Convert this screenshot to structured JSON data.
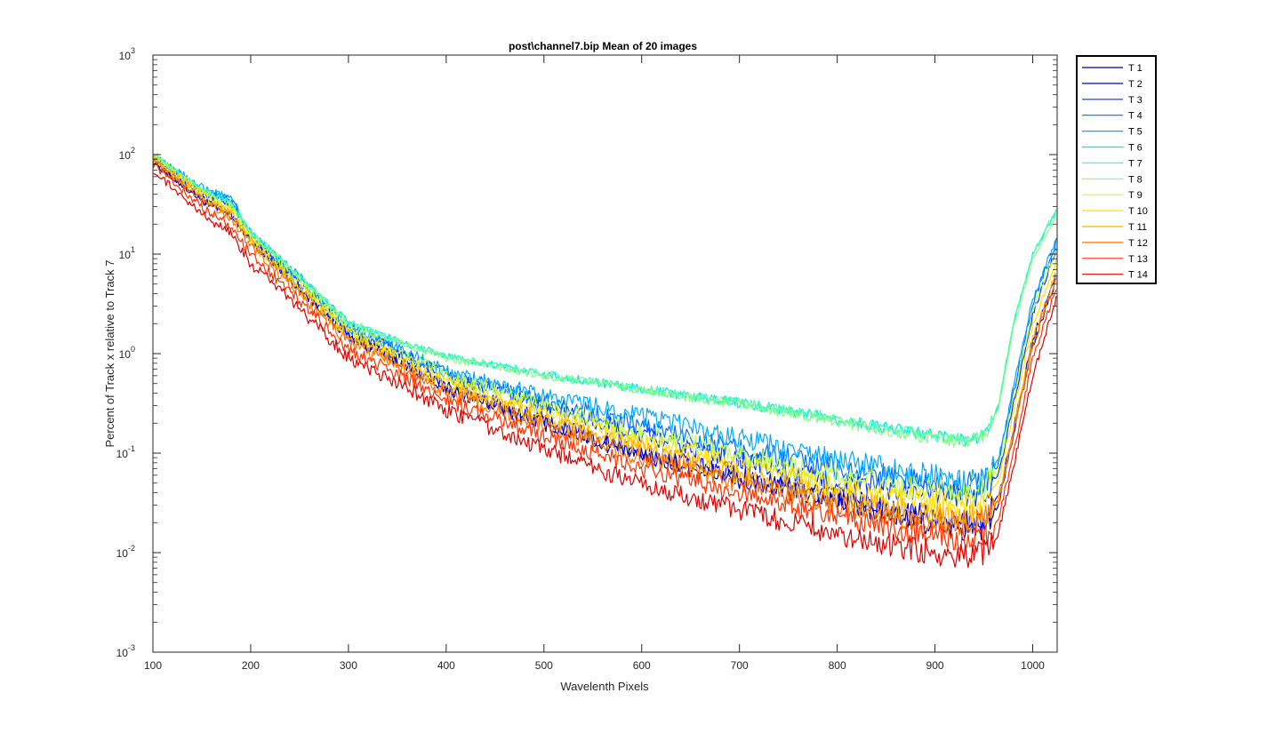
{
  "chart_data": {
    "type": "line",
    "title": "post\\channel7.bip  Mean of 20 images",
    "xlabel": "Wavelenth Pixels",
    "ylabel": "Percent of Track x relative to Track 7",
    "xlim": [
      100,
      1025
    ],
    "ylim": [
      0.001,
      1000
    ],
    "yscale": "log",
    "grid": false,
    "legend_position": "outside-right",
    "xticks": [
      {
        "value": 100,
        "label": "100"
      },
      {
        "value": 200,
        "label": "200"
      },
      {
        "value": 300,
        "label": "300"
      },
      {
        "value": 400,
        "label": "400"
      },
      {
        "value": 500,
        "label": "500"
      },
      {
        "value": 600,
        "label": "600"
      },
      {
        "value": 700,
        "label": "700"
      },
      {
        "value": 800,
        "label": "800"
      },
      {
        "value": 900,
        "label": "900"
      },
      {
        "value": 1000,
        "label": "1000"
      }
    ],
    "yticks": [
      {
        "value": 0.001,
        "base": "10",
        "exp": "-3"
      },
      {
        "value": 0.01,
        "base": "10",
        "exp": "-2"
      },
      {
        "value": 0.1,
        "base": "10",
        "exp": "-1"
      },
      {
        "value": 1,
        "base": "10",
        "exp": "0"
      },
      {
        "value": 10,
        "base": "10",
        "exp": "1"
      },
      {
        "value": 100,
        "base": "10",
        "exp": "2"
      },
      {
        "value": 1000,
        "base": "10",
        "exp": "3"
      }
    ],
    "x": [
      100,
      150,
      180,
      200,
      250,
      300,
      350,
      400,
      500,
      600,
      700,
      800,
      850,
      900,
      930,
      950,
      965,
      980,
      1000,
      1025
    ],
    "series": [
      {
        "name": "T 1",
        "color": "#0000A0",
        "values": [
          85,
          35,
          24,
          14,
          4.5,
          1.5,
          0.85,
          0.45,
          0.2,
          0.095,
          0.055,
          0.033,
          0.025,
          0.019,
          0.017,
          0.018,
          0.03,
          0.15,
          1.2,
          6
        ]
      },
      {
        "name": "T 2",
        "color": "#0000E0",
        "values": [
          88,
          36,
          25,
          14,
          4.6,
          1.55,
          0.88,
          0.47,
          0.21,
          0.1,
          0.058,
          0.036,
          0.028,
          0.022,
          0.02,
          0.022,
          0.035,
          0.17,
          1.4,
          7
        ]
      },
      {
        "name": "T 3",
        "color": "#0030FF",
        "values": [
          95,
          42,
          32,
          15,
          5.2,
          1.7,
          1.05,
          0.58,
          0.3,
          0.15,
          0.085,
          0.05,
          0.045,
          0.04,
          0.038,
          0.04,
          0.06,
          0.3,
          2.5,
          12
        ]
      },
      {
        "name": "T 4",
        "color": "#0070FF",
        "values": [
          98,
          44,
          34,
          16,
          5.5,
          1.8,
          1.1,
          0.62,
          0.34,
          0.19,
          0.11,
          0.07,
          0.06,
          0.052,
          0.048,
          0.05,
          0.08,
          0.4,
          3.2,
          14
        ]
      },
      {
        "name": "T 5",
        "color": "#00AAFF",
        "values": [
          100,
          46,
          35,
          17,
          5.8,
          1.9,
          1.15,
          0.65,
          0.38,
          0.24,
          0.14,
          0.085,
          0.07,
          0.058,
          0.05,
          0.052,
          0.085,
          0.45,
          3.5,
          15
        ]
      },
      {
        "name": "T 6",
        "color": "#00E5E5",
        "values": [
          100,
          45,
          33,
          17,
          6,
          2.1,
          1.35,
          0.95,
          0.62,
          0.44,
          0.32,
          0.22,
          0.18,
          0.15,
          0.135,
          0.15,
          0.3,
          2,
          10,
          28
        ]
      },
      {
        "name": "T 7",
        "color": "#40FFC0",
        "values": [
          100,
          45,
          33,
          17,
          6,
          2.1,
          1.35,
          0.95,
          0.62,
          0.44,
          0.32,
          0.22,
          0.18,
          0.15,
          0.135,
          0.15,
          0.3,
          2,
          10,
          30
        ]
      },
      {
        "name": "T 8",
        "color": "#80FF80",
        "values": [
          100,
          44,
          31,
          16,
          5.8,
          2,
          1.3,
          0.9,
          0.6,
          0.43,
          0.31,
          0.21,
          0.17,
          0.14,
          0.13,
          0.14,
          0.28,
          1.8,
          9,
          25
        ]
      },
      {
        "name": "T 9",
        "color": "#C0FF40",
        "values": [
          98,
          42,
          29,
          15,
          5.2,
          1.8,
          1.05,
          0.6,
          0.3,
          0.16,
          0.095,
          0.058,
          0.048,
          0.042,
          0.04,
          0.045,
          0.07,
          0.35,
          2.8,
          12
        ]
      },
      {
        "name": "T 10",
        "color": "#FFE000",
        "values": [
          95,
          40,
          27,
          14,
          4.8,
          1.6,
          0.95,
          0.52,
          0.26,
          0.13,
          0.075,
          0.045,
          0.038,
          0.033,
          0.03,
          0.032,
          0.05,
          0.25,
          2,
          9
        ]
      },
      {
        "name": "T 11",
        "color": "#FFB000",
        "values": [
          92,
          38,
          25,
          13,
          4.4,
          1.45,
          0.85,
          0.46,
          0.22,
          0.11,
          0.062,
          0.036,
          0.029,
          0.024,
          0.022,
          0.023,
          0.035,
          0.17,
          1.4,
          7
        ]
      },
      {
        "name": "T 12",
        "color": "#FF7000",
        "values": [
          88,
          35,
          23,
          12,
          4,
          1.3,
          0.75,
          0.4,
          0.19,
          0.09,
          0.05,
          0.029,
          0.024,
          0.021,
          0.02,
          0.021,
          0.032,
          0.15,
          1.2,
          6
        ]
      },
      {
        "name": "T 13",
        "color": "#FF3000",
        "values": [
          80,
          30,
          19,
          10,
          3.4,
          1.1,
          0.63,
          0.34,
          0.15,
          0.07,
          0.04,
          0.023,
          0.018,
          0.015,
          0.013,
          0.014,
          0.022,
          0.1,
          0.9,
          5
        ]
      },
      {
        "name": "T 14",
        "color": "#E00000",
        "values": [
          70,
          25,
          16,
          8,
          2.8,
          0.9,
          0.5,
          0.27,
          0.11,
          0.048,
          0.027,
          0.015,
          0.012,
          0.01,
          0.009,
          0.01,
          0.016,
          0.07,
          0.6,
          4
        ]
      }
    ]
  }
}
